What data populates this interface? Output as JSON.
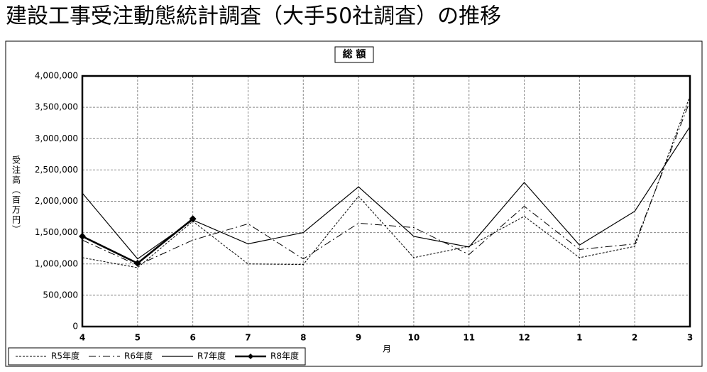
{
  "chart_data": {
    "type": "line",
    "title": "建設工事受注動態統計調査（大手50社調査）の推移",
    "panel_label": "総 額",
    "y_label": "受注高（百万円）",
    "x_label": "月",
    "categories": [
      "4",
      "5",
      "6",
      "7",
      "8",
      "9",
      "10",
      "11",
      "12",
      "1",
      "2",
      "3"
    ],
    "ylim": [
      0,
      4000000
    ],
    "yticks": [
      0,
      {
        "value": 500000,
        "label": "500,000"
      },
      {
        "value": 1000000,
        "label": "1,000,000"
      },
      {
        "value": 1500000,
        "label": "1,500,000"
      },
      {
        "value": 2000000,
        "label": "2,000,000"
      },
      {
        "value": 2500000,
        "label": "2,500,000"
      },
      {
        "value": 3000000,
        "label": "3,000,000"
      },
      {
        "value": 3500000,
        "label": "3,500,000"
      },
      {
        "value": 4000000,
        "label": "4,000,000"
      }
    ],
    "grid": true,
    "legend": "bottom-left",
    "series": [
      {
        "name": "R5年度",
        "color": "#000000",
        "line_style": "dotted",
        "values": [
          1100000,
          940000,
          1680000,
          1000000,
          990000,
          2080000,
          1100000,
          1280000,
          1760000,
          1100000,
          1280000,
          3680000
        ]
      },
      {
        "name": "R6年度",
        "color": "#000000",
        "line_style": "dashdot",
        "values": [
          1380000,
          980000,
          1380000,
          1640000,
          1080000,
          1650000,
          1580000,
          1150000,
          1920000,
          1230000,
          1320000,
          3600000
        ]
      },
      {
        "name": "R7年度",
        "color": "#000000",
        "line_style": "solid",
        "values": [
          2130000,
          1080000,
          1700000,
          1320000,
          1500000,
          2230000,
          1440000,
          1270000,
          2300000,
          1300000,
          1840000,
          3190000
        ]
      },
      {
        "name": "R8年度",
        "color": "#000000",
        "line_style": "bold",
        "marker": "diamond",
        "values": [
          1440000,
          1010000,
          1720000,
          null,
          null,
          null,
          null,
          null,
          null,
          null,
          null,
          null
        ]
      }
    ]
  }
}
